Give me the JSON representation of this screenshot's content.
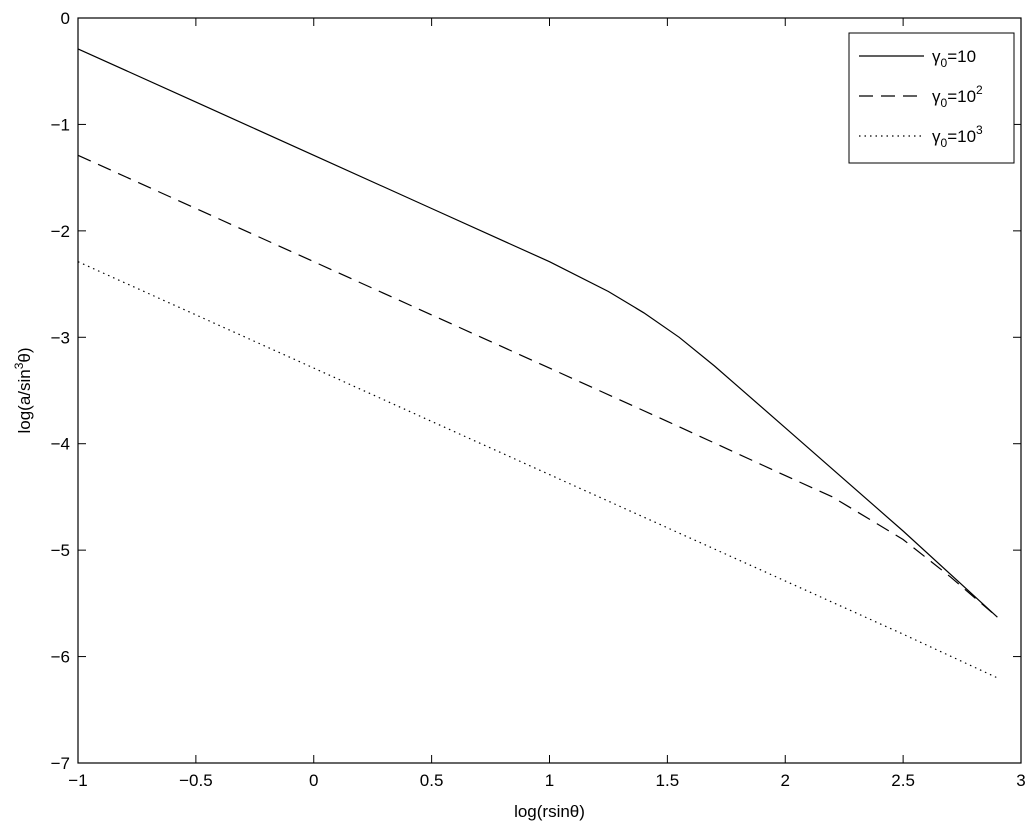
{
  "chart_data": {
    "type": "line",
    "xlabel": "log(rsinθ)",
    "ylabel": "log(a/sin³θ)",
    "xlim": [
      -1,
      3
    ],
    "ylim": [
      -7,
      0
    ],
    "x_ticks": [
      -1,
      -0.5,
      0,
      0.5,
      1,
      1.5,
      2,
      2.5,
      3
    ],
    "y_ticks": [
      -7,
      -6,
      -5,
      -4,
      -3,
      -2,
      -1,
      0
    ],
    "x_tick_labels": [
      "−1",
      "−0.5",
      "0",
      "0.5",
      "1",
      "1.5",
      "2",
      "2.5",
      "3"
    ],
    "y_tick_labels": [
      "−7",
      "−6",
      "−5",
      "−4",
      "−3",
      "−2",
      "−1",
      "0"
    ],
    "grid": false,
    "legend_position": "top-right",
    "series": [
      {
        "name": "γ0=10",
        "label_parts": {
          "base": "γ",
          "sub": "0",
          "eq": "=10",
          "sup": ""
        },
        "style": "solid",
        "color": "#000000",
        "x": [
          -1.0,
          -0.5,
          0.0,
          0.5,
          1.0,
          1.25,
          1.4,
          1.55,
          1.7,
          2.0,
          2.5,
          2.9
        ],
        "y": [
          -0.29,
          -0.79,
          -1.29,
          -1.79,
          -2.29,
          -2.57,
          -2.77,
          -3.0,
          -3.27,
          -3.85,
          -4.82,
          -5.63
        ]
      },
      {
        "name": "γ0=10²",
        "label_parts": {
          "base": "γ",
          "sub": "0",
          "eq": "=10",
          "sup": "2"
        },
        "style": "dashed",
        "color": "#000000",
        "x": [
          -1.0,
          -0.5,
          0.0,
          0.5,
          1.0,
          1.5,
          2.0,
          2.2,
          2.5,
          2.7,
          2.9
        ],
        "y": [
          -1.29,
          -1.79,
          -2.29,
          -2.79,
          -3.29,
          -3.79,
          -4.3,
          -4.5,
          -4.9,
          -5.25,
          -5.63
        ]
      },
      {
        "name": "γ0=10³",
        "label_parts": {
          "base": "γ",
          "sub": "0",
          "eq": "=10",
          "sup": "3"
        },
        "style": "dotted",
        "color": "#000000",
        "x": [
          -1.0,
          -0.5,
          0.0,
          0.5,
          1.0,
          1.5,
          2.0,
          2.5,
          2.9
        ],
        "y": [
          -2.29,
          -2.79,
          -3.29,
          -3.79,
          -4.29,
          -4.79,
          -5.29,
          -5.79,
          -6.2
        ]
      }
    ]
  }
}
